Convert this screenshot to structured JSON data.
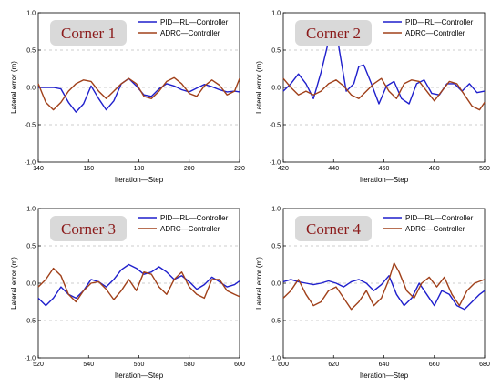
{
  "colors": {
    "pid_rl": "#1f1fcc",
    "adrc": "#a0401a",
    "corner_box": "#d9d9d9",
    "corner_text": "#8b1a1a",
    "grid": "#9a9a9a"
  },
  "chart_data": [
    {
      "type": "line",
      "title": "Corner 1",
      "xlabel": "Iteration—Step",
      "ylabel": "Lateral error (m)",
      "xlim": [
        140,
        220
      ],
      "ylim": [
        -1.0,
        1.0
      ],
      "xticks": [
        "140",
        "160",
        "180",
        "200",
        "220"
      ],
      "yticks": [
        "-1.0",
        "-0.5",
        "0.0",
        "0.5",
        "1.0"
      ],
      "grid": "dashed horizontal at -0.5, 0.0, 0.5",
      "legend": "top-right",
      "series": [
        {
          "name": "PID—RL—Controller",
          "color_key": "pid_rl",
          "x": [
            140,
            143,
            146,
            149,
            152,
            155,
            158,
            161,
            164,
            167,
            170,
            173,
            176,
            179,
            182,
            185,
            188,
            191,
            194,
            197,
            200,
            203,
            206,
            209,
            212,
            215,
            218,
            220
          ],
          "y": [
            0.0,
            0.0,
            0.0,
            -0.02,
            -0.2,
            -0.33,
            -0.22,
            0.02,
            -0.15,
            -0.3,
            -0.18,
            0.05,
            0.12,
            0.02,
            -0.1,
            -0.12,
            -0.02,
            0.05,
            0.02,
            -0.03,
            -0.06,
            -0.01,
            0.04,
            0.01,
            -0.03,
            -0.06,
            -0.05,
            -0.06
          ]
        },
        {
          "name": "ADRC—Controller",
          "color_key": "adrc",
          "x": [
            140,
            143,
            146,
            149,
            152,
            155,
            158,
            161,
            164,
            167,
            170,
            173,
            176,
            179,
            182,
            185,
            188,
            191,
            194,
            197,
            200,
            203,
            206,
            209,
            212,
            215,
            218,
            220
          ],
          "y": [
            0.05,
            -0.2,
            -0.3,
            -0.2,
            -0.05,
            0.05,
            0.1,
            0.08,
            -0.05,
            -0.15,
            -0.05,
            0.05,
            0.12,
            0.05,
            -0.12,
            -0.15,
            -0.05,
            0.08,
            0.13,
            0.05,
            -0.08,
            -0.12,
            0.02,
            0.1,
            0.03,
            -0.1,
            -0.05,
            0.12
          ]
        }
      ]
    },
    {
      "type": "line",
      "title": "Corner 2",
      "xlabel": "Iteration—Step",
      "ylabel": "Lateral error (m)",
      "xlim": [
        420,
        500
      ],
      "ylim": [
        -1.0,
        1.0
      ],
      "xticks": [
        "420",
        "440",
        "460",
        "480",
        "500"
      ],
      "yticks": [
        "-1.0",
        "-0.5",
        "0.0",
        "0.5",
        "1.0"
      ],
      "grid": "dashed horizontal at -0.5, 0.0, 0.5",
      "legend": "top-right",
      "series": [
        {
          "name": "PID—RL—Controller",
          "color_key": "pid_rl",
          "x": [
            420,
            423,
            426,
            429,
            432,
            435,
            438,
            440,
            442,
            445,
            448,
            450,
            452,
            455,
            458,
            461,
            464,
            467,
            470,
            473,
            476,
            479,
            482,
            485,
            488,
            491,
            494,
            497,
            500
          ],
          "y": [
            -0.05,
            0.05,
            0.18,
            0.05,
            -0.15,
            0.2,
            0.62,
            0.7,
            0.55,
            -0.05,
            0.05,
            0.28,
            0.3,
            0.05,
            -0.22,
            0.02,
            0.08,
            -0.15,
            -0.22,
            0.05,
            0.1,
            -0.08,
            -0.1,
            0.05,
            0.05,
            -0.05,
            0.05,
            -0.07,
            -0.05
          ]
        },
        {
          "name": "ADRC—Controller",
          "color_key": "adrc",
          "x": [
            420,
            423,
            426,
            429,
            432,
            435,
            438,
            441,
            444,
            447,
            450,
            453,
            456,
            459,
            462,
            465,
            468,
            471,
            474,
            477,
            480,
            483,
            486,
            489,
            492,
            495,
            498,
            500
          ],
          "y": [
            0.12,
            0.0,
            -0.1,
            -0.05,
            -0.1,
            -0.05,
            0.05,
            0.1,
            0.02,
            -0.1,
            -0.15,
            -0.05,
            0.05,
            0.12,
            -0.05,
            -0.15,
            0.05,
            0.1,
            0.08,
            -0.05,
            -0.18,
            -0.05,
            0.08,
            0.05,
            -0.1,
            -0.25,
            -0.3,
            -0.2
          ]
        }
      ]
    },
    {
      "type": "line",
      "title": "Corner 3",
      "xlabel": "Iteration—Step",
      "ylabel": "Lateral error (m)",
      "xlim": [
        520,
        600
      ],
      "ylim": [
        -1.0,
        1.0
      ],
      "xticks": [
        "520",
        "540",
        "560",
        "580",
        "600"
      ],
      "yticks": [
        "-1.0",
        "-0.5",
        "0.0",
        "0.5",
        "1.0"
      ],
      "grid": "dashed horizontal at -0.5, 0.0, 0.5",
      "legend": "top-right",
      "series": [
        {
          "name": "PID—RL—Controller",
          "color_key": "pid_rl",
          "x": [
            520,
            523,
            526,
            529,
            532,
            535,
            538,
            541,
            544,
            547,
            550,
            553,
            556,
            559,
            562,
            565,
            568,
            571,
            574,
            577,
            580,
            583,
            586,
            589,
            592,
            595,
            598,
            600
          ],
          "y": [
            -0.2,
            -0.3,
            -0.2,
            -0.05,
            -0.15,
            -0.2,
            -0.1,
            0.05,
            0.02,
            -0.05,
            0.05,
            0.18,
            0.25,
            0.2,
            0.12,
            0.15,
            0.22,
            0.15,
            0.05,
            0.1,
            0.02,
            -0.08,
            -0.02,
            0.08,
            0.02,
            -0.05,
            -0.02,
            0.03
          ]
        },
        {
          "name": "ADRC—Controller",
          "color_key": "adrc",
          "x": [
            520,
            523,
            526,
            529,
            532,
            535,
            538,
            541,
            544,
            547,
            550,
            553,
            556,
            559,
            562,
            565,
            568,
            571,
            574,
            577,
            580,
            583,
            586,
            589,
            592,
            595,
            598,
            600
          ],
          "y": [
            -0.05,
            0.05,
            0.2,
            0.1,
            -0.15,
            -0.25,
            -0.1,
            0.0,
            0.02,
            -0.08,
            -0.22,
            -0.1,
            0.05,
            -0.1,
            0.15,
            0.12,
            -0.05,
            -0.15,
            0.05,
            0.15,
            -0.05,
            -0.15,
            -0.2,
            0.05,
            0.05,
            -0.1,
            -0.15,
            -0.18
          ]
        }
      ]
    },
    {
      "type": "line",
      "title": "Corner 4",
      "xlabel": "Iteration—Step",
      "ylabel": "Lateral error (m)",
      "xlim": [
        600,
        680
      ],
      "ylim": [
        -1.0,
        1.0
      ],
      "xticks": [
        "600",
        "620",
        "640",
        "660",
        "680"
      ],
      "yticks": [
        "-1.0",
        "-0.5",
        "0.0",
        "0.5",
        "1.0"
      ],
      "grid": "dashed horizontal at -0.5, 0.0, 0.5",
      "legend": "top-right",
      "series": [
        {
          "name": "PID—RL—Controller",
          "color_key": "pid_rl",
          "x": [
            600,
            603,
            606,
            609,
            612,
            615,
            618,
            621,
            624,
            627,
            630,
            633,
            636,
            639,
            642,
            645,
            648,
            651,
            654,
            657,
            660,
            663,
            666,
            669,
            672,
            675,
            678,
            680
          ],
          "y": [
            0.02,
            0.05,
            0.02,
            0.0,
            -0.02,
            0.0,
            0.03,
            0.0,
            -0.05,
            0.02,
            0.05,
            0.0,
            -0.1,
            -0.02,
            0.1,
            -0.15,
            -0.3,
            -0.2,
            0.0,
            -0.15,
            -0.3,
            -0.1,
            -0.15,
            -0.3,
            -0.35,
            -0.25,
            -0.15,
            -0.1
          ]
        },
        {
          "name": "ADRC—Controller",
          "color_key": "adrc",
          "x": [
            600,
            603,
            606,
            609,
            612,
            615,
            618,
            621,
            624,
            627,
            630,
            633,
            636,
            639,
            642,
            644,
            646,
            649,
            652,
            655,
            658,
            661,
            664,
            667,
            670,
            673,
            676,
            680
          ],
          "y": [
            -0.2,
            -0.1,
            0.05,
            -0.15,
            -0.3,
            -0.25,
            -0.1,
            -0.05,
            -0.2,
            -0.35,
            -0.25,
            -0.1,
            -0.3,
            -0.2,
            0.05,
            0.27,
            0.15,
            -0.1,
            -0.2,
            0.0,
            0.08,
            -0.05,
            0.08,
            -0.15,
            -0.3,
            -0.1,
            0.0,
            0.05
          ]
        }
      ]
    }
  ]
}
